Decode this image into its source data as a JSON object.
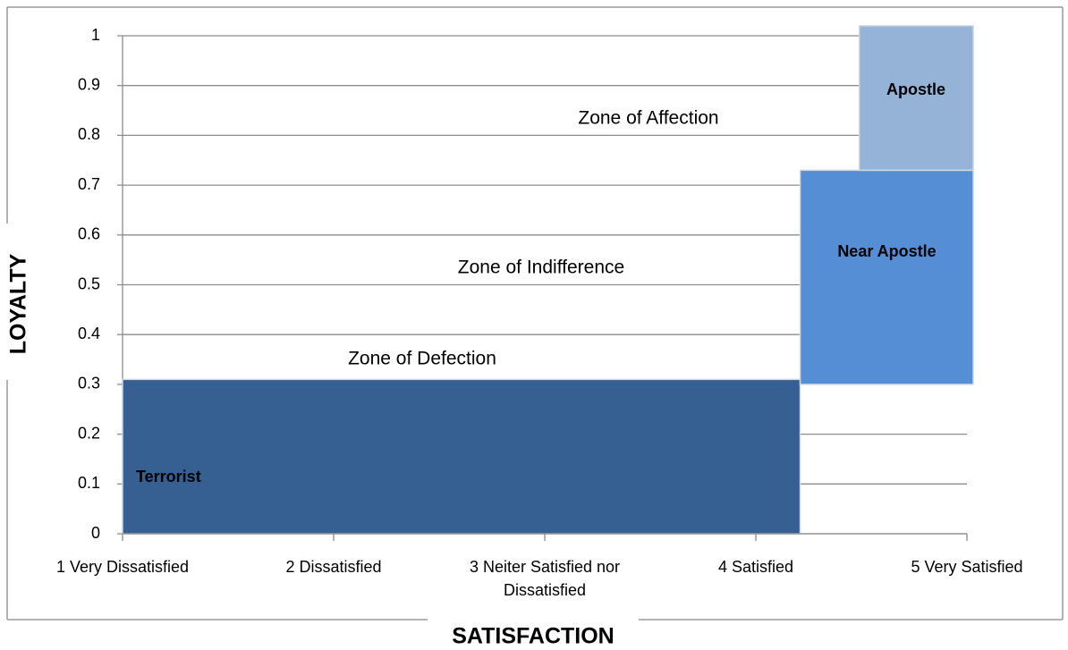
{
  "chart_data": {
    "type": "zones",
    "x_label": "SATISFACTION",
    "y_label": "LOYALTY",
    "xlim": [
      1,
      5
    ],
    "ylim": [
      0,
      1
    ],
    "xticks": [
      {
        "value": 1,
        "label": "1 Very Dissatisfied"
      },
      {
        "value": 2,
        "label": "2 Dissatisfied"
      },
      {
        "value": 3,
        "label": "3 Neiter Satisfied nor Dissatisfied"
      },
      {
        "value": 4,
        "label": "4 Satisfied"
      },
      {
        "value": 5,
        "label": "5 Very Satisfied"
      }
    ],
    "yticks": [
      0,
      0.1,
      0.2,
      0.3,
      0.4,
      0.5,
      0.6,
      0.7,
      0.8,
      0.9,
      1
    ],
    "grid": true,
    "regions": [
      {
        "name": "Terrorist",
        "color": "#366092",
        "x": [
          1,
          4.21
        ],
        "y": [
          0,
          0.31
        ]
      },
      {
        "name": "Near Apostle",
        "color": "#558ed5",
        "x": [
          4.21,
          5.03
        ],
        "y": [
          0.3,
          0.73
        ]
      },
      {
        "name": "Apostle",
        "color": "#95b3d7",
        "x": [
          4.49,
          5.03
        ],
        "y": [
          0.73,
          1.02
        ]
      }
    ],
    "annotations": [
      "Zone of Affection",
      "Zone of Indifference",
      "Zone of Defection"
    ]
  }
}
